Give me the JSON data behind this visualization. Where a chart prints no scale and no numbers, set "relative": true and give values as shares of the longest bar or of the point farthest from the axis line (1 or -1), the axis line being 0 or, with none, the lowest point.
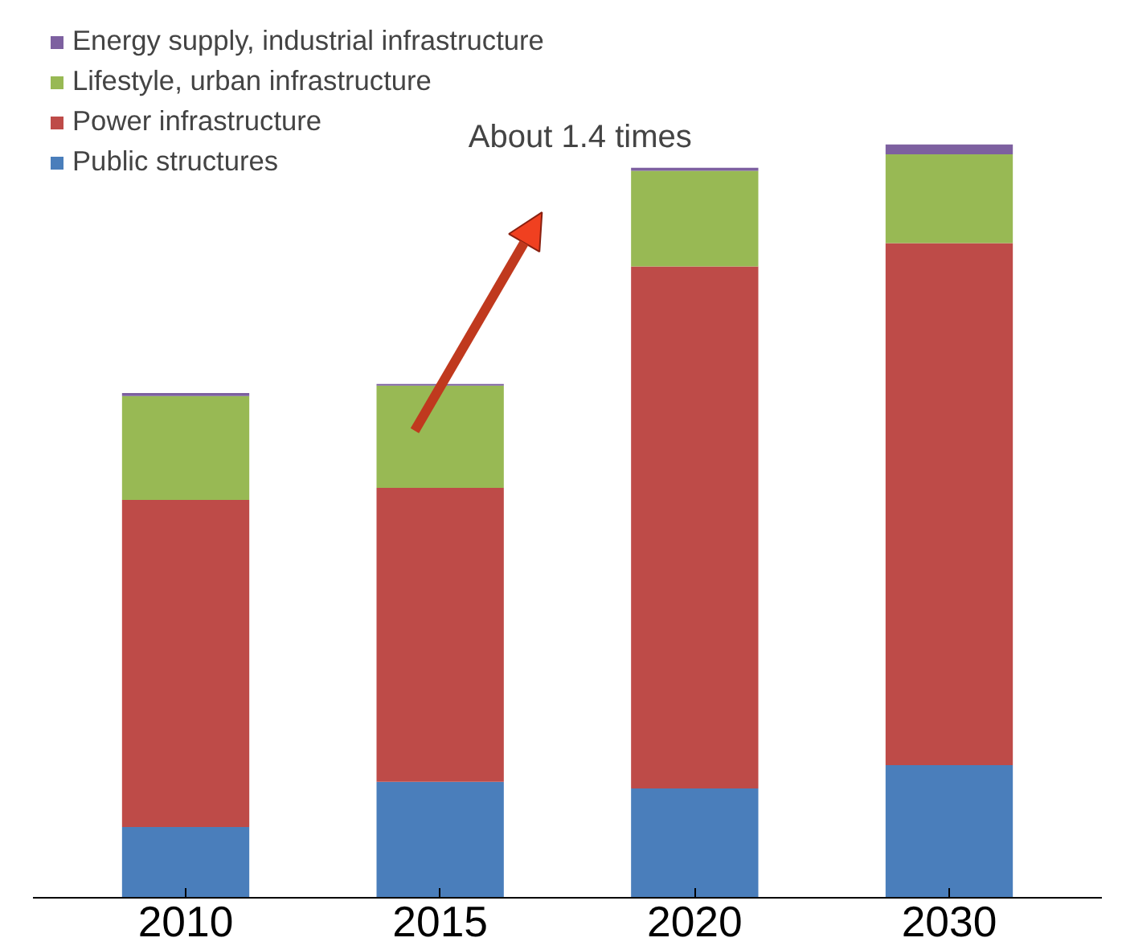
{
  "chart_data": {
    "type": "bar",
    "stacked": true,
    "relative": true,
    "categories": [
      "2010",
      "2015",
      "2020",
      "2030"
    ],
    "series": [
      {
        "name": "Public structures",
        "color": "#4a7ebb",
        "values": [
          0.094,
          0.154,
          0.145,
          0.176
        ]
      },
      {
        "name": "Power infrastructure",
        "color": "#be4b48",
        "values": [
          0.434,
          0.39,
          0.693,
          0.693
        ]
      },
      {
        "name": "Lifestyle, urban infrastructure",
        "color": "#98b954",
        "values": [
          0.138,
          0.136,
          0.127,
          0.118
        ]
      },
      {
        "name": "Energy supply, industrial infrastructure",
        "color": "#7d60a0",
        "values": [
          0.004,
          0.002,
          0.004,
          0.013
        ]
      }
    ],
    "legend": "top left",
    "annotations": [
      "About 1.4 times"
    ]
  }
}
